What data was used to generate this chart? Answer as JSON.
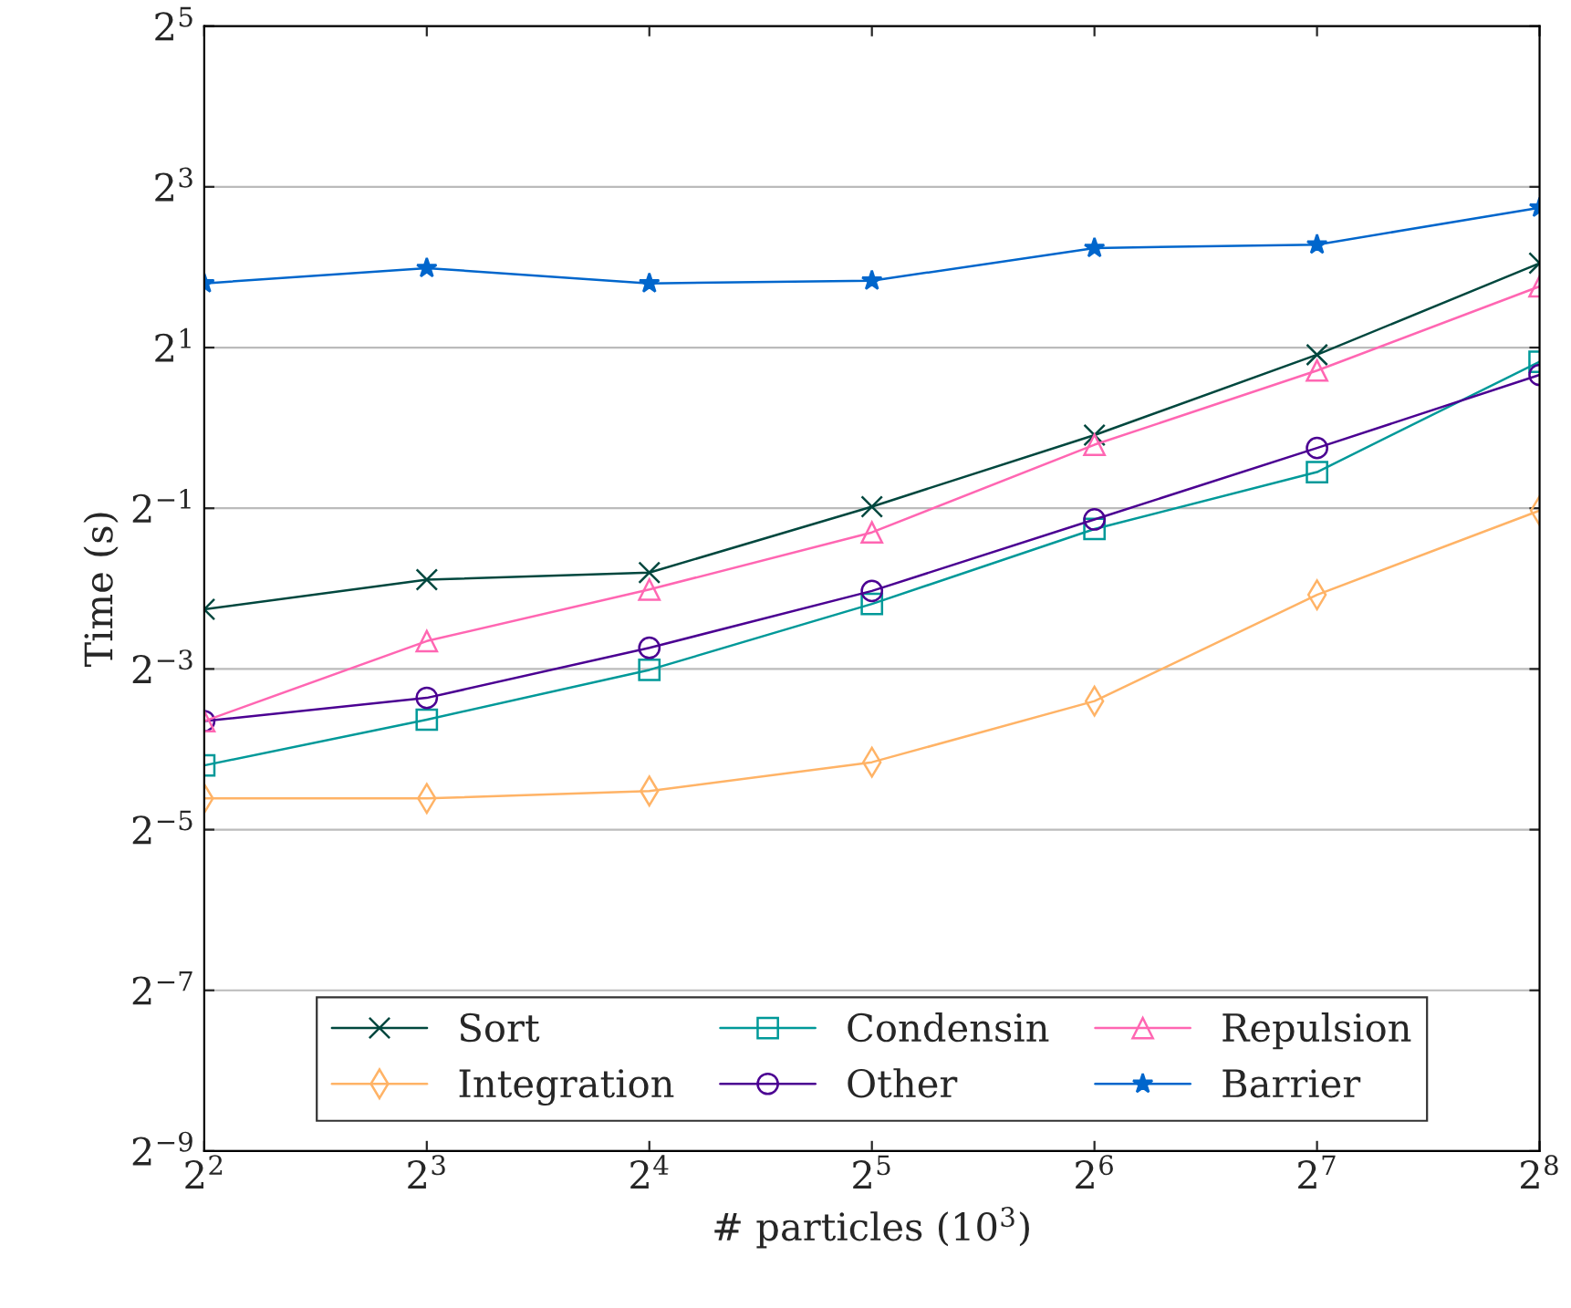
{
  "chart_data": {
    "type": "line",
    "xlabel": "# particles (10$^{3}$)",
    "ylabel": "Time (s)",
    "log": "xy",
    "grid": "y",
    "legend": "bottom",
    "x": [
      4,
      8,
      16,
      32,
      64,
      128,
      256
    ],
    "xlim": [
      4,
      256
    ],
    "xticks": [
      {
        "value": 4,
        "label": "2$^{2}$"
      },
      {
        "value": 8,
        "label": "2$^{3}$"
      },
      {
        "value": 16,
        "label": "2$^{4}$"
      },
      {
        "value": 32,
        "label": "2$^{5}$"
      },
      {
        "value": 64,
        "label": "2$^{6}$"
      },
      {
        "value": 128,
        "label": "2$^{7}$"
      },
      {
        "value": 256,
        "label": "2$^{8}$"
      }
    ],
    "ylim": [
      0.001953125,
      32
    ],
    "yticks": [
      {
        "value": 0.001953125,
        "label": "2$^{−9}$"
      },
      {
        "value": 0.0078125,
        "label": "2$^{−7}$"
      },
      {
        "value": 0.03125,
        "label": "2$^{−5}$"
      },
      {
        "value": 0.125,
        "label": "2$^{−3}$"
      },
      {
        "value": 0.5,
        "label": "2$^{−1}$"
      },
      {
        "value": 2,
        "label": "2$^{1}$"
      },
      {
        "value": 8,
        "label": "2$^{3}$"
      },
      {
        "value": 32,
        "label": "2$^{5}$"
      }
    ],
    "series": [
      {
        "name": "Sort",
        "color": "#00473e",
        "marker": "cross",
        "values": [
          0.209,
          0.27,
          0.287,
          0.507,
          0.94,
          1.88,
          4.14
        ]
      },
      {
        "name": "Integration",
        "color": "#ffb366",
        "marker": "diamond",
        "values": [
          0.0409,
          0.0409,
          0.0436,
          0.0559,
          0.0947,
          0.237,
          0.49
        ]
      },
      {
        "name": "Condensin",
        "color": "#009999",
        "marker": "square",
        "values": [
          0.0544,
          0.0807,
          0.124,
          0.219,
          0.418,
          0.683,
          1.77
        ]
      },
      {
        "name": "Other",
        "color": "#4b0092",
        "marker": "circle",
        "values": [
          0.0797,
          0.0974,
          0.15,
          0.245,
          0.454,
          0.841,
          1.58
        ]
      },
      {
        "name": "Repulsion",
        "color": "#ff66b2",
        "marker": "triangle",
        "values": [
          0.0797,
          0.159,
          0.248,
          0.406,
          0.865,
          1.64,
          3.39
        ]
      },
      {
        "name": "Barrier",
        "color": "#0066cc",
        "marker": "star",
        "values": [
          3.48,
          3.97,
          3.48,
          3.56,
          4.72,
          4.86,
          6.68
        ]
      }
    ]
  }
}
